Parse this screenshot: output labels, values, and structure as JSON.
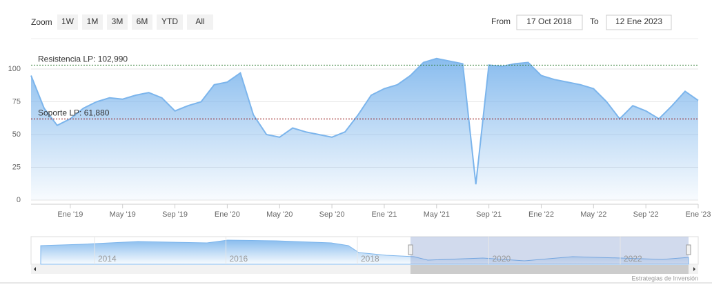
{
  "chart_data": {
    "type": "area",
    "zoom_label": "Zoom",
    "zoom_buttons": [
      "1W",
      "1M",
      "3M",
      "6M",
      "YTD",
      "All"
    ],
    "from_label": "From",
    "from_value": "17 Oct 2018",
    "to_label": "To",
    "to_value": "12 Ene 2023",
    "categories": [
      null,
      null,
      null,
      "Ene '19",
      null,
      null,
      null,
      "May '19",
      null,
      null,
      null,
      "Sep '19",
      null,
      null,
      null,
      "Ene '20",
      null,
      null,
      null,
      "May '20",
      null,
      null,
      null,
      "Sep '20",
      null,
      null,
      null,
      "Ene '21",
      null,
      null,
      null,
      "May '21",
      null,
      null,
      null,
      "Sep '21",
      null,
      null,
      null,
      "Ene '22",
      null,
      null,
      null,
      "May '22",
      null,
      null,
      null,
      "Sep '22",
      null,
      null,
      null,
      "Ene '23"
    ],
    "series": [
      {
        "color": "#7cb5ec",
        "values": [
          95,
          70,
          57,
          62,
          70,
          75,
          78,
          77,
          80,
          82,
          78,
          68,
          72,
          75,
          88,
          90,
          97,
          65,
          50,
          48,
          55,
          52,
          50,
          48,
          52,
          65,
          80,
          85,
          88,
          95,
          105,
          108,
          106,
          104,
          12,
          103,
          102,
          104,
          105,
          95,
          92,
          90,
          88,
          85,
          75,
          62,
          72,
          68,
          62,
          72,
          83,
          76
        ]
      }
    ],
    "ylim": [
      0,
      120
    ],
    "yticks": [
      0,
      25,
      50,
      75,
      100
    ],
    "grid": true,
    "plot_lines": [
      {
        "label": "Resistencia LP: 102,990",
        "value": 102.99,
        "color": "#2e7d32"
      },
      {
        "label": "Soporte LP: 61,880",
        "value": 61.88,
        "color": "#8b0000"
      }
    ],
    "navigator_years": [
      2014,
      2016,
      2018,
      2020,
      2022
    ],
    "credits": "Estrategias de Inversión"
  }
}
